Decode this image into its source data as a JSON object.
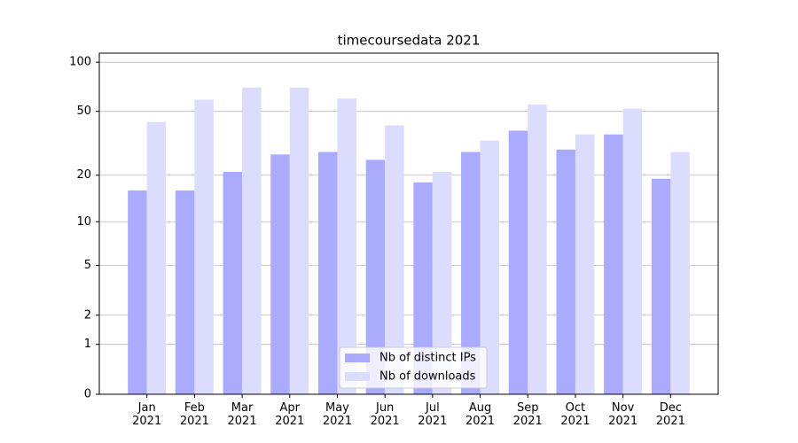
{
  "chart_data": {
    "type": "bar",
    "title": "timecoursedata 2021",
    "categories": [
      "Jan\n2021",
      "Feb\n2021",
      "Mar\n2021",
      "Apr\n2021",
      "May\n2021",
      "Jun\n2021",
      "Jul\n2021",
      "Aug\n2021",
      "Sep\n2021",
      "Oct\n2021",
      "Nov\n2021",
      "Dec\n2021"
    ],
    "series": [
      {
        "name": "Nb of distinct IPs",
        "color": "#aaaaff",
        "values": [
          16,
          16,
          21,
          27,
          28,
          25,
          18,
          28,
          38,
          29,
          36,
          19
        ]
      },
      {
        "name": "Nb of downloads",
        "color": "#dcdcff",
        "values": [
          43,
          59,
          70,
          70,
          60,
          41,
          21,
          33,
          55,
          36,
          52,
          28
        ]
      }
    ],
    "yscale": "log1p",
    "ylim": [
      0,
      113.5
    ],
    "yticks": [
      0,
      1,
      2,
      5,
      10,
      20,
      50,
      100
    ],
    "grid": true,
    "legend": "lower center"
  }
}
